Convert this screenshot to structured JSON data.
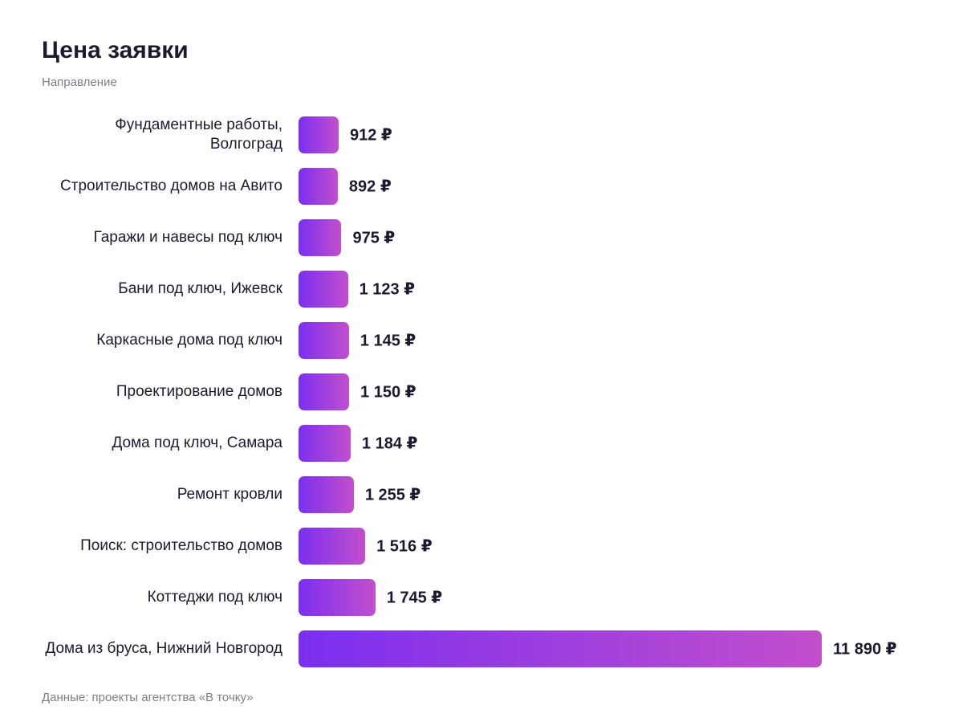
{
  "chart_data": {
    "type": "bar",
    "orientation": "horizontal",
    "title": "Цена заявки",
    "subtitle": "Направление",
    "source": "Данные: проекты агентства «В точку»",
    "categories": [
      "Фундаментные работы,\nВолгоград",
      "Строительство домов на Авито",
      "Гаражи и навесы под ключ",
      "Бани под ключ, Ижевск",
      "Каркасные дома под ключ",
      "Проектирование домов",
      "Дома под ключ, Самара",
      "Ремонт кровли",
      "Поиск: строительство домов",
      "Коттеджи под ключ",
      "Дома из бруса, Нижний Новгород"
    ],
    "values": [
      912,
      892,
      975,
      1123,
      1145,
      1150,
      1184,
      1255,
      1516,
      1745,
      11890
    ],
    "value_labels": [
      "912 ₽",
      "892 ₽",
      "975 ₽",
      "1 123 ₽",
      "1 145 ₽",
      "1 150 ₽",
      "1 184 ₽",
      "1 255 ₽",
      "1 516 ₽",
      "1 745 ₽",
      "11 890 ₽"
    ],
    "color": [
      "#7b2ff0",
      "#c24fcc"
    ]
  }
}
